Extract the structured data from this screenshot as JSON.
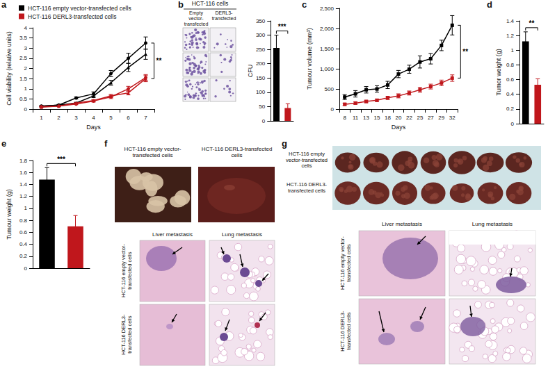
{
  "chart_data": [
    {
      "panel": "a",
      "type": "line",
      "xlabel": "Days",
      "ylabel": "Cell viability (relative units)",
      "categories": [
        "1",
        "2",
        "3",
        "4",
        "5",
        "6",
        "7"
      ],
      "ylim": [
        0,
        4
      ],
      "yticks": [
        0,
        0.5,
        1,
        1.5,
        2,
        2.5,
        3,
        3.5,
        4
      ],
      "grid": false,
      "legend": "upper left",
      "significance": "**",
      "series": [
        {
          "name": "HCT-116 empty vector-transfected cells",
          "color": "#000000",
          "marker": "circle",
          "values": [
            0.15,
            0.2,
            0.55,
            0.75,
            1.75,
            2.5,
            3.25
          ],
          "errors": [
            0.02,
            0.03,
            0.05,
            0.1,
            0.15,
            0.25,
            0.3
          ]
        },
        {
          "name": "HCT-116 empty vector-transfected cells",
          "color": "#000000",
          "marker": "triangle",
          "values": [
            0.15,
            0.2,
            0.3,
            0.65,
            1.3,
            2.05,
            2.7
          ],
          "errors": [
            0.02,
            0.02,
            0.04,
            0.08,
            0.12,
            0.2,
            0.25
          ]
        },
        {
          "name": "HCT-116 DERL3-transfected cells",
          "color": "#c0171c",
          "marker": "circle",
          "values": [
            0.12,
            0.15,
            0.25,
            0.4,
            0.6,
            1.0,
            1.55
          ],
          "errors": [
            0.02,
            0.02,
            0.03,
            0.05,
            0.08,
            0.12,
            0.15
          ]
        },
        {
          "name": "HCT-116 DERL3-transfected cells",
          "color": "#c0171c",
          "marker": "triangle",
          "values": [
            0.1,
            0.15,
            0.3,
            0.42,
            0.65,
            0.8,
            1.5
          ],
          "errors": [
            0.02,
            0.02,
            0.03,
            0.05,
            0.08,
            0.1,
            0.15
          ]
        }
      ]
    },
    {
      "type": "bar",
      "ylabel": "CFU",
      "categories": [
        null,
        null
      ],
      "values": [
        255,
        45
      ],
      "errors": [
        45,
        15
      ],
      "colors": [
        "#000000",
        "#c0171c"
      ],
      "ylim": [
        0,
        350
      ],
      "yticks": [
        0,
        50,
        100,
        150,
        200,
        250,
        300,
        350
      ],
      "grid": false,
      "tick_labels": "y",
      "significance": "***"
    },
    {
      "panel": "c",
      "type": "line",
      "xlabel": "Days",
      "ylabel": "Tumour volume (mm³)",
      "categories": [
        "8",
        "11",
        "13",
        "15",
        "18",
        "20",
        "22",
        "25",
        "27",
        "29",
        "32"
      ],
      "ylim": [
        0,
        2500
      ],
      "yticks": [
        0,
        500,
        {
          "value": 1000,
          "label": "1,000"
        },
        {
          "value": 1500,
          "label": "1,500"
        },
        {
          "value": 2000,
          "label": "2,000"
        },
        {
          "value": 2500,
          "label": "2,500"
        }
      ],
      "grid": false,
      "significance": "**",
      "series": [
        {
          "name": "HCT-116 empty vector-transfected cells",
          "color": "#000000",
          "marker": "square",
          "values": [
            300,
            380,
            480,
            500,
            600,
            870,
            990,
            1170,
            1250,
            1580,
            2080
          ],
          "errors": [
            60,
            80,
            80,
            80,
            90,
            90,
            100,
            150,
            130,
            130,
            240
          ]
        },
        {
          "name": "HCT-116 DERL3-transfected cells",
          "color": "#c0171c",
          "marker": "square",
          "values": [
            120,
            150,
            190,
            220,
            280,
            330,
            400,
            480,
            560,
            650,
            770
          ],
          "errors": [
            30,
            30,
            30,
            30,
            40,
            50,
            50,
            60,
            60,
            70,
            80
          ]
        }
      ]
    },
    {
      "panel": "d",
      "type": "bar",
      "ylabel": "Tumor weight (g)",
      "categories": [
        null,
        null
      ],
      "values": [
        1.12,
        0.53
      ],
      "errors": [
        0.13,
        0.08
      ],
      "colors": [
        "#000000",
        "#c0171c"
      ],
      "ylim": [
        0,
        1.4
      ],
      "yticks": [
        0,
        0.2,
        0.4,
        0.6,
        0.8,
        1,
        1.2,
        1.4
      ],
      "grid": false,
      "tick_labels": "y",
      "significance": "**"
    },
    {
      "panel": "e",
      "type": "bar",
      "ylabel": "Tumour weight (g)",
      "categories": [
        null,
        null
      ],
      "values": [
        1.48,
        0.7
      ],
      "errors": [
        0.2,
        0.18
      ],
      "colors": [
        "#000000",
        "#c0171c"
      ],
      "ylim": [
        0,
        1.8
      ],
      "yticks": [
        0,
        0.2,
        0.4,
        0.6,
        0.8,
        1,
        1.2,
        1.4,
        1.6,
        1.8
      ],
      "grid": false,
      "tick_labels": "y",
      "significance": "***"
    }
  ],
  "image_panels": {
    "b": {
      "panel": "b",
      "title": "HCT-116 cells",
      "columns": [
        "Empty vector-transfected",
        "DERL3-transfected"
      ]
    },
    "f": {
      "panel": "f",
      "photo_captions": [
        "HCT-116 empty vector-transfected cells",
        "HCT-116 DERL3-transfected cells"
      ],
      "histology_columns": [
        "Liver metastasis",
        "Lung metastasis"
      ],
      "histology_rows": [
        "HCT-116 empty vector-transfected cells",
        "HCT-116 DERL3-transfected cells"
      ]
    },
    "g": {
      "panel": "g",
      "photo_rows": [
        "HCT-116 empty vector-transfected cells",
        "HCT-116 DERL3-transfected cells"
      ],
      "histology_columns": [
        "Liver metastasis",
        "Lung metastasis"
      ],
      "histology_rows": [
        "HCT-116 empty vector-transfected cells",
        "HCT-116 DERL3-transfected cells"
      ]
    }
  }
}
